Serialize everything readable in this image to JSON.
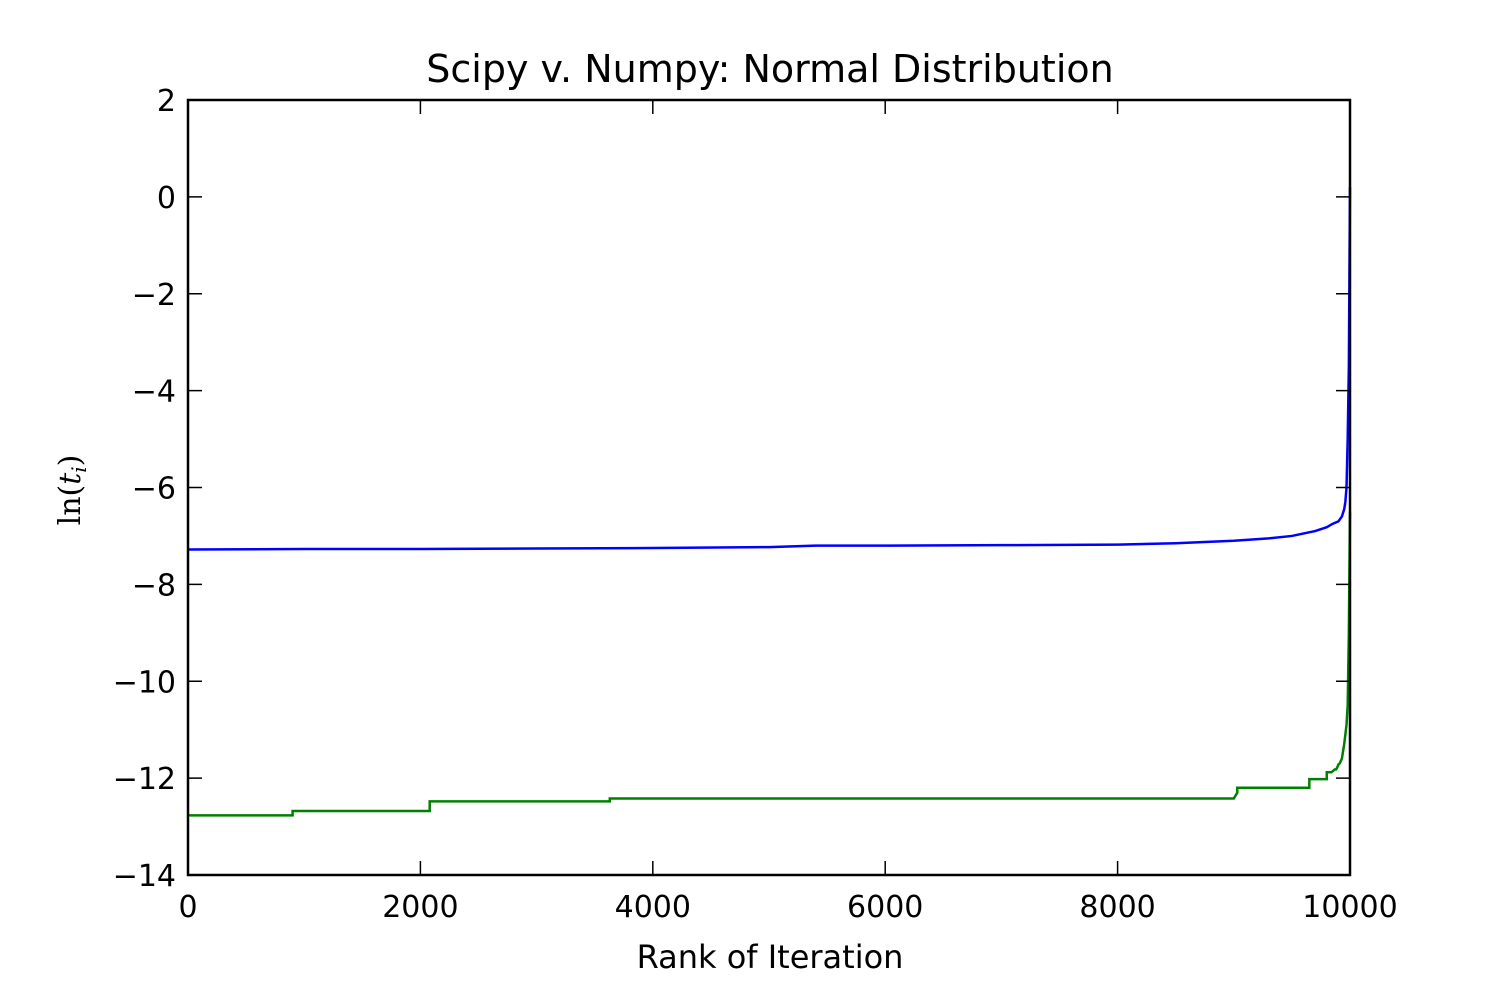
{
  "chart_data": {
    "type": "line",
    "title": "Scipy v. Numpy: Normal Distribution",
    "xlabel": "Rank of Iteration",
    "ylabel": "ln(t_i)",
    "xlim": [
      0,
      10000
    ],
    "ylim": [
      -14,
      2
    ],
    "xticks": [
      0,
      2000,
      4000,
      6000,
      8000,
      10000
    ],
    "xtick_labels": [
      "0",
      "2000",
      "4000",
      "6000",
      "8000",
      "10000"
    ],
    "yticks": [
      -14,
      -12,
      -10,
      -8,
      -6,
      -4,
      -2,
      0,
      2
    ],
    "ytick_labels": [
      "−14",
      "−12",
      "−10",
      "−8",
      "−6",
      "−4",
      "−2",
      "0",
      "2"
    ],
    "grid": false,
    "series": [
      {
        "color": "#0000ff",
        "x": [
          0,
          1000,
          2000,
          3000,
          4000,
          5000,
          5400,
          6000,
          7000,
          8000,
          8500,
          9000,
          9300,
          9500,
          9700,
          9800,
          9850,
          9900,
          9930,
          9950,
          9960,
          9970,
          9980,
          9990,
          10000
        ],
        "y": [
          -7.28,
          -7.27,
          -7.27,
          -7.26,
          -7.25,
          -7.23,
          -7.2,
          -7.2,
          -7.19,
          -7.18,
          -7.15,
          -7.1,
          -7.05,
          -7.0,
          -6.9,
          -6.82,
          -6.75,
          -6.7,
          -6.6,
          -6.45,
          -6.3,
          -6.0,
          -5.0,
          -3.5,
          0.2
        ]
      },
      {
        "color": "#008000",
        "x": [
          0,
          900,
          900,
          2080,
          2080,
          3630,
          3630,
          9000,
          9030,
          9030,
          9650,
          9650,
          9800,
          9800,
          9840,
          9870,
          9880,
          9890,
          9900,
          9910,
          9930,
          9950,
          9970,
          9980,
          9990,
          10000
        ],
        "y": [
          -12.77,
          -12.77,
          -12.68,
          -12.68,
          -12.48,
          -12.48,
          -12.42,
          -12.42,
          -12.3,
          -12.2,
          -12.2,
          -12.02,
          -12.02,
          -11.88,
          -11.88,
          -11.82,
          -11.82,
          -11.78,
          -11.72,
          -11.7,
          -11.6,
          -11.3,
          -10.9,
          -10.5,
          -9.0,
          -6.5
        ]
      }
    ]
  }
}
